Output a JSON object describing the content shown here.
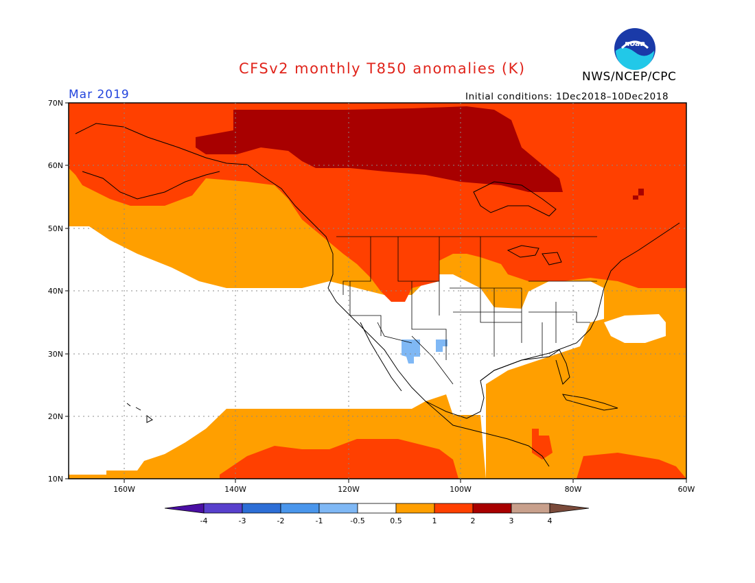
{
  "title": "CFSv2 monthly T850 anomalies (K)",
  "agency": "NWS/NCEP/CPC",
  "logo_text": "noaa",
  "month": "Mar 2019",
  "initial_conditions": "Initial conditions: 1Dec2018–10Dec2018",
  "map": {
    "lon_range": [
      -172,
      -60
    ],
    "lat_range": [
      10,
      70
    ],
    "lat_ticks": [
      "70N",
      "60N",
      "50N",
      "40N",
      "30N",
      "20N",
      "10N"
    ],
    "lon_ticks": [
      "160W",
      "140W",
      "120W",
      "100W",
      "80W",
      "60W"
    ]
  },
  "legend": {
    "labels": [
      "-4",
      "-3",
      "-2",
      "-1",
      "-0.5",
      "0.5",
      "1",
      "2",
      "3",
      "4"
    ],
    "colors": [
      "#4a0fa3",
      "#5840cc",
      "#2d6ed6",
      "#4a96ec",
      "#7fb8f5",
      "#ffffff",
      "#ff9f00",
      "#ff4000",
      "#a80000",
      "#c8a08c",
      "#7a4a3a"
    ]
  },
  "colors": {
    "anom_0_5_1": "#ff9f00",
    "anom_1_2": "#ff4000",
    "anom_2_3": "#a80000",
    "anom_neg": "#7fb8f5",
    "title": "#e0241b",
    "month": "#2244dd"
  }
}
